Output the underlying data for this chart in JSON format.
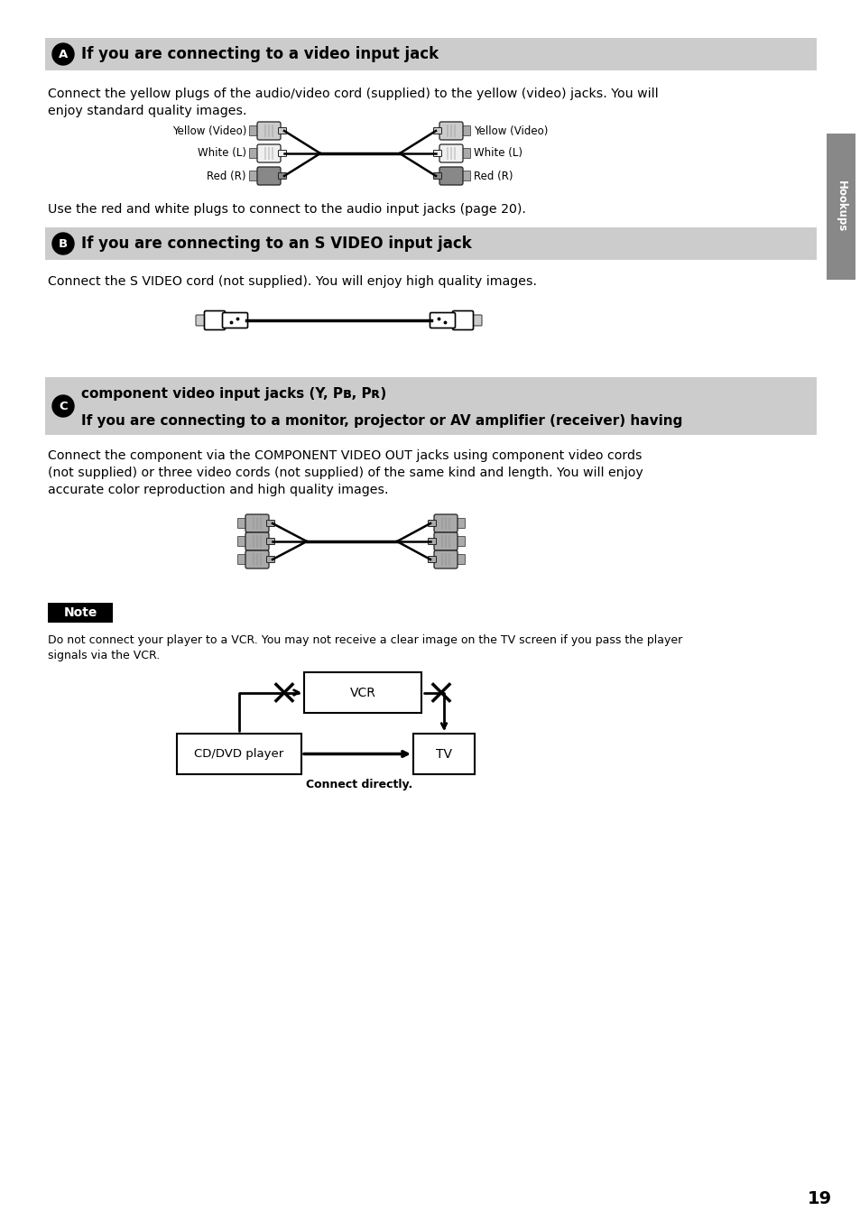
{
  "page_number": "19",
  "bg": "#ffffff",
  "section_bg": "#cccccc",
  "tab_text": "Hookups",
  "tab_color": "#888888",
  "section_a_title": "If you are connecting to a video input jack",
  "section_a_body1": "Connect the yellow plugs of the audio/video cord (supplied) to the yellow (video) jacks. You will",
  "section_a_body2": "enjoy standard quality images.",
  "section_a_footer": "Use the red and white plugs to connect to the audio input jacks (page 20).",
  "rca_labels_left": [
    "Yellow (Video)",
    "White (L)",
    "Red (R)"
  ],
  "rca_labels_right": [
    "Yellow (Video)",
    "White (L)",
    "Red (R)"
  ],
  "section_b_title": "If you are connecting to an S VIDEO input jack",
  "section_b_body": "Connect the S VIDEO cord (not supplied). You will enjoy high quality images.",
  "section_c_title1": "If you are connecting to a monitor, projector or AV amplifier (receiver) having",
  "section_c_title2": "component video input jacks (Y, Pʙ, Pʀ)",
  "section_c_body1": "Connect the component via the COMPONENT VIDEO OUT jacks using component video cords",
  "section_c_body2": "(not supplied) or three video cords (not supplied) of the same kind and length. You will enjoy",
  "section_c_body3": "accurate color reproduction and high quality images.",
  "note_label": "Note",
  "note_body1": "Do not connect your player to a VCR. You may not receive a clear image on the TV screen if you pass the player",
  "note_body2": "signals via the VCR.",
  "vcr_label": "VCR",
  "cd_dvd_label": "CD/DVD player",
  "tv_label": "TV",
  "connect_label": "Connect directly."
}
